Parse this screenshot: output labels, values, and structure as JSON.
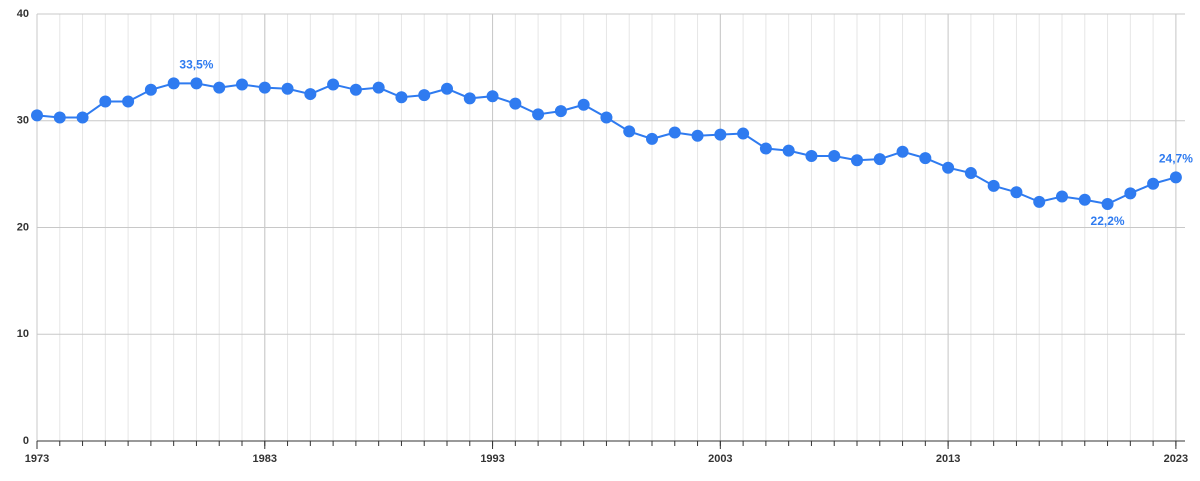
{
  "chart_data": {
    "type": "line",
    "x": [
      1973,
      1974,
      1975,
      1976,
      1977,
      1978,
      1979,
      1980,
      1981,
      1982,
      1983,
      1984,
      1985,
      1986,
      1987,
      1988,
      1989,
      1990,
      1991,
      1992,
      1993,
      1994,
      1995,
      1996,
      1997,
      1998,
      1999,
      2000,
      2001,
      2002,
      2003,
      2004,
      2005,
      2006,
      2007,
      2008,
      2009,
      2010,
      2011,
      2012,
      2013,
      2014,
      2015,
      2016,
      2017,
      2018,
      2019,
      2020,
      2021,
      2022,
      2023
    ],
    "series": [
      {
        "color": "#2f7bf0",
        "values": [
          30.5,
          30.3,
          30.3,
          31.8,
          31.8,
          32.9,
          33.5,
          33.5,
          33.1,
          33.4,
          33.1,
          33.0,
          32.5,
          33.4,
          32.9,
          33.1,
          32.2,
          32.4,
          33.0,
          32.1,
          32.3,
          31.6,
          30.6,
          30.9,
          31.5,
          30.3,
          29.0,
          28.3,
          28.9,
          28.6,
          28.7,
          28.8,
          27.4,
          27.2,
          26.7,
          26.7,
          26.3,
          26.4,
          27.1,
          26.5,
          25.6,
          25.1,
          23.9,
          23.3,
          22.4,
          22.9,
          22.6,
          22.2,
          23.2,
          24.1,
          24.7
        ],
        "value_labels": [
          null,
          null,
          null,
          null,
          null,
          null,
          null,
          "33,5%",
          null,
          null,
          null,
          null,
          null,
          null,
          null,
          null,
          null,
          null,
          null,
          null,
          null,
          null,
          null,
          null,
          null,
          null,
          null,
          null,
          null,
          null,
          null,
          null,
          null,
          null,
          null,
          null,
          null,
          null,
          null,
          null,
          null,
          null,
          null,
          null,
          null,
          null,
          null,
          "22,2%",
          null,
          null,
          "24,7%"
        ]
      }
    ],
    "xlim": [
      1973,
      2023.4
    ],
    "xticks": [
      1973,
      1983,
      1993,
      2003,
      2013,
      2023
    ],
    "ylim": [
      0,
      40
    ],
    "yticks": [
      0,
      10,
      20,
      30,
      40
    ],
    "grid": true
  }
}
